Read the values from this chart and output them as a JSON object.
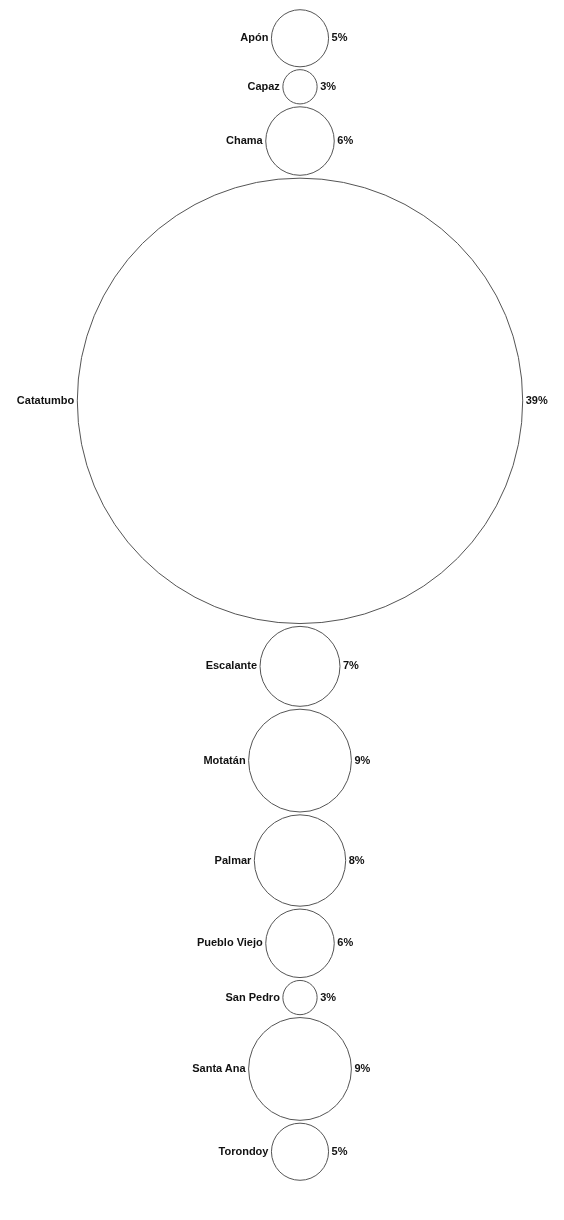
{
  "chart_data": {
    "type": "other",
    "categories": [
      "Apón",
      "Capaz",
      "Chama",
      "Catatumbo",
      "Escalante",
      "Motatán",
      "Palmar",
      "Pueblo Viejo",
      "San Pedro",
      "Santa Ana",
      "Torondoy"
    ],
    "values": [
      5,
      3,
      6,
      39,
      7,
      9,
      8,
      6,
      3,
      9,
      5
    ],
    "value_labels": [
      "5%",
      "3%",
      "6%",
      "39%",
      "7%",
      "9%",
      "8%",
      "6%",
      "3%",
      "9%",
      "5%"
    ],
    "color": "#555555"
  }
}
